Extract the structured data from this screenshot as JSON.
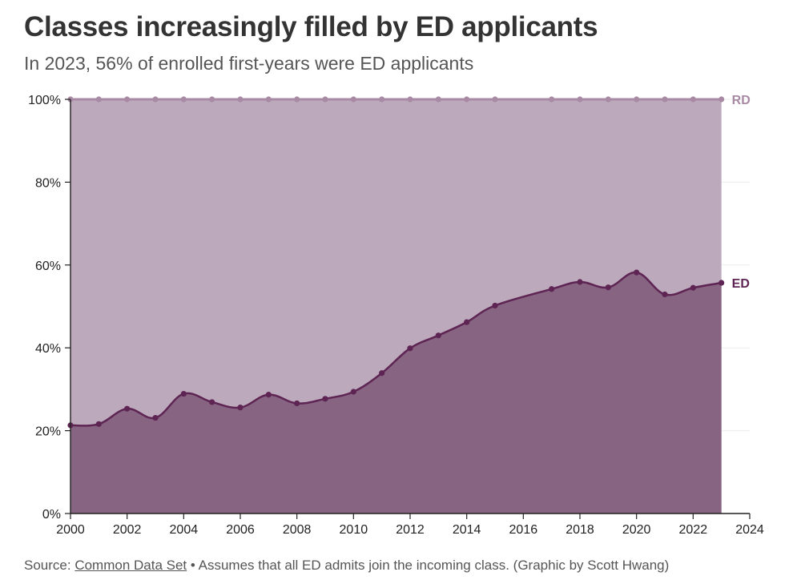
{
  "header": {
    "title": "Classes increasingly filled by ED applicants",
    "subtitle": "In 2023, 56% of enrolled first-years were ED applicants"
  },
  "footer": {
    "source_prefix": "Source: ",
    "source_link": "Common Data Set",
    "source_note": " • Assumes that all ED admits join the incoming class. (Graphic by Scott Hwang)"
  },
  "chart_data": {
    "type": "area",
    "title": "Classes increasingly filled by ED applicants",
    "subtitle": "In 2023, 56% of enrolled first-years were ED applicants",
    "xlabel": "",
    "ylabel": "",
    "xlim": [
      2000,
      2024
    ],
    "ylim": [
      0,
      100
    ],
    "x_ticks": [
      "2000",
      "2002",
      "2004",
      "2006",
      "2008",
      "2010",
      "2012",
      "2014",
      "2016",
      "2018",
      "2020",
      "2022",
      "2024"
    ],
    "y_ticks": [
      "0%",
      "20%",
      "40%",
      "60%",
      "80%",
      "100%"
    ],
    "grid": true,
    "stacked": true,
    "series": [
      {
        "name": "ED",
        "color": "#5e2453",
        "fill": "#866482",
        "points": [
          {
            "x": 2000,
            "y": 21.3
          },
          {
            "x": 2001,
            "y": 21.6
          },
          {
            "x": 2002,
            "y": 25.3
          },
          {
            "x": 2003,
            "y": 23.1
          },
          {
            "x": 2004,
            "y": 28.9
          },
          {
            "x": 2005,
            "y": 26.9
          },
          {
            "x": 2006,
            "y": 25.6
          },
          {
            "x": 2007,
            "y": 28.7
          },
          {
            "x": 2008,
            "y": 26.6
          },
          {
            "x": 2009,
            "y": 27.7
          },
          {
            "x": 2010,
            "y": 29.4
          },
          {
            "x": 2011,
            "y": 33.9
          },
          {
            "x": 2012,
            "y": 39.9
          },
          {
            "x": 2013,
            "y": 43.0
          },
          {
            "x": 2014,
            "y": 46.2
          },
          {
            "x": 2015,
            "y": 50.2
          },
          {
            "x": 2017,
            "y": 54.2
          },
          {
            "x": 2018,
            "y": 55.9
          },
          {
            "x": 2019,
            "y": 54.6
          },
          {
            "x": 2020,
            "y": 58.2
          },
          {
            "x": 2021,
            "y": 52.9
          },
          {
            "x": 2022,
            "y": 54.5
          },
          {
            "x": 2023,
            "y": 55.7
          }
        ]
      },
      {
        "name": "RD",
        "color": "#a88aa5",
        "fill": "#bcaabc",
        "points": [
          {
            "x": 2000,
            "y": 100
          },
          {
            "x": 2001,
            "y": 100
          },
          {
            "x": 2002,
            "y": 100
          },
          {
            "x": 2003,
            "y": 100
          },
          {
            "x": 2004,
            "y": 100
          },
          {
            "x": 2005,
            "y": 100
          },
          {
            "x": 2006,
            "y": 100
          },
          {
            "x": 2007,
            "y": 100
          },
          {
            "x": 2008,
            "y": 100
          },
          {
            "x": 2009,
            "y": 100
          },
          {
            "x": 2010,
            "y": 100
          },
          {
            "x": 2011,
            "y": 100
          },
          {
            "x": 2012,
            "y": 100
          },
          {
            "x": 2013,
            "y": 100
          },
          {
            "x": 2014,
            "y": 100
          },
          {
            "x": 2015,
            "y": 100
          },
          {
            "x": 2017,
            "y": 100
          },
          {
            "x": 2018,
            "y": 100
          },
          {
            "x": 2019,
            "y": 100
          },
          {
            "x": 2020,
            "y": 100
          },
          {
            "x": 2021,
            "y": 100
          },
          {
            "x": 2022,
            "y": 100
          },
          {
            "x": 2023,
            "y": 100
          }
        ]
      }
    ]
  }
}
